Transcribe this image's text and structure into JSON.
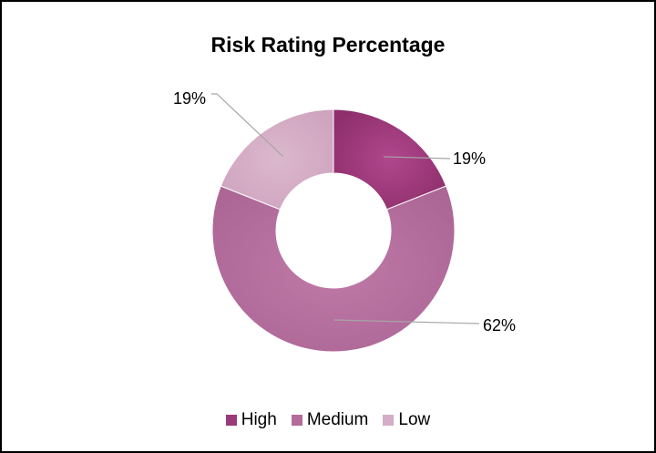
{
  "chart_data": {
    "type": "pie",
    "variant": "doughnut",
    "title": "Risk Rating Percentage",
    "categories": [
      "High",
      "Medium",
      "Low"
    ],
    "values": [
      19,
      62,
      19
    ],
    "data_labels": [
      "19%",
      "62%",
      "19%"
    ],
    "colors": [
      "#9b3a78",
      "#b36b9b",
      "#d4adc6"
    ],
    "legend_position": "bottom"
  }
}
